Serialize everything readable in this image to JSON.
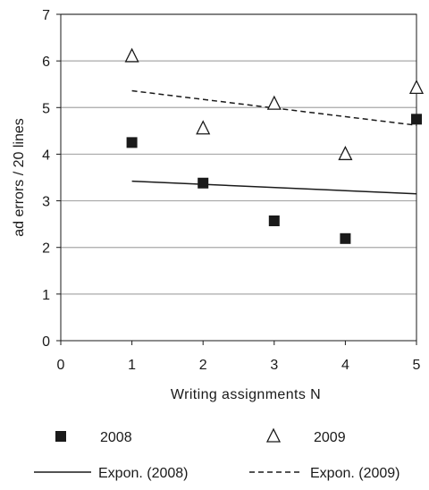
{
  "chart_data": {
    "type": "scatter",
    "xlabel": "Writing assignments  N",
    "ylabel": "ad  errors / 20 lines",
    "xlim": [
      0,
      5
    ],
    "ylim": [
      0,
      7
    ],
    "x_ticks": [
      0,
      1,
      2,
      3,
      4,
      5
    ],
    "y_ticks": [
      0,
      1,
      2,
      3,
      4,
      5,
      6,
      7
    ],
    "grid": "horizontal",
    "legend_position": "bottom",
    "series": [
      {
        "name": "2008",
        "kind": "scatter",
        "marker": "filled-square",
        "color": "#1a1a1a",
        "x": [
          1,
          2,
          3,
          4,
          5
        ],
        "y": [
          4.25,
          3.38,
          2.57,
          2.19,
          4.75
        ]
      },
      {
        "name": "2009",
        "kind": "scatter",
        "marker": "open-triangle",
        "color": "#1a1a1a",
        "x": [
          1,
          2,
          3,
          4,
          5
        ],
        "y": [
          6.1,
          4.55,
          5.08,
          4.0,
          5.42
        ]
      },
      {
        "name": "Expon. (2008)",
        "kind": "trendline",
        "style": "solid",
        "color": "#1a1a1a",
        "x": [
          1,
          5
        ],
        "y": [
          3.42,
          3.15
        ]
      },
      {
        "name": "Expon. (2009)",
        "kind": "trendline",
        "style": "dashed",
        "color": "#1a1a1a",
        "x": [
          1,
          5
        ],
        "y": [
          5.36,
          4.62
        ]
      }
    ]
  }
}
